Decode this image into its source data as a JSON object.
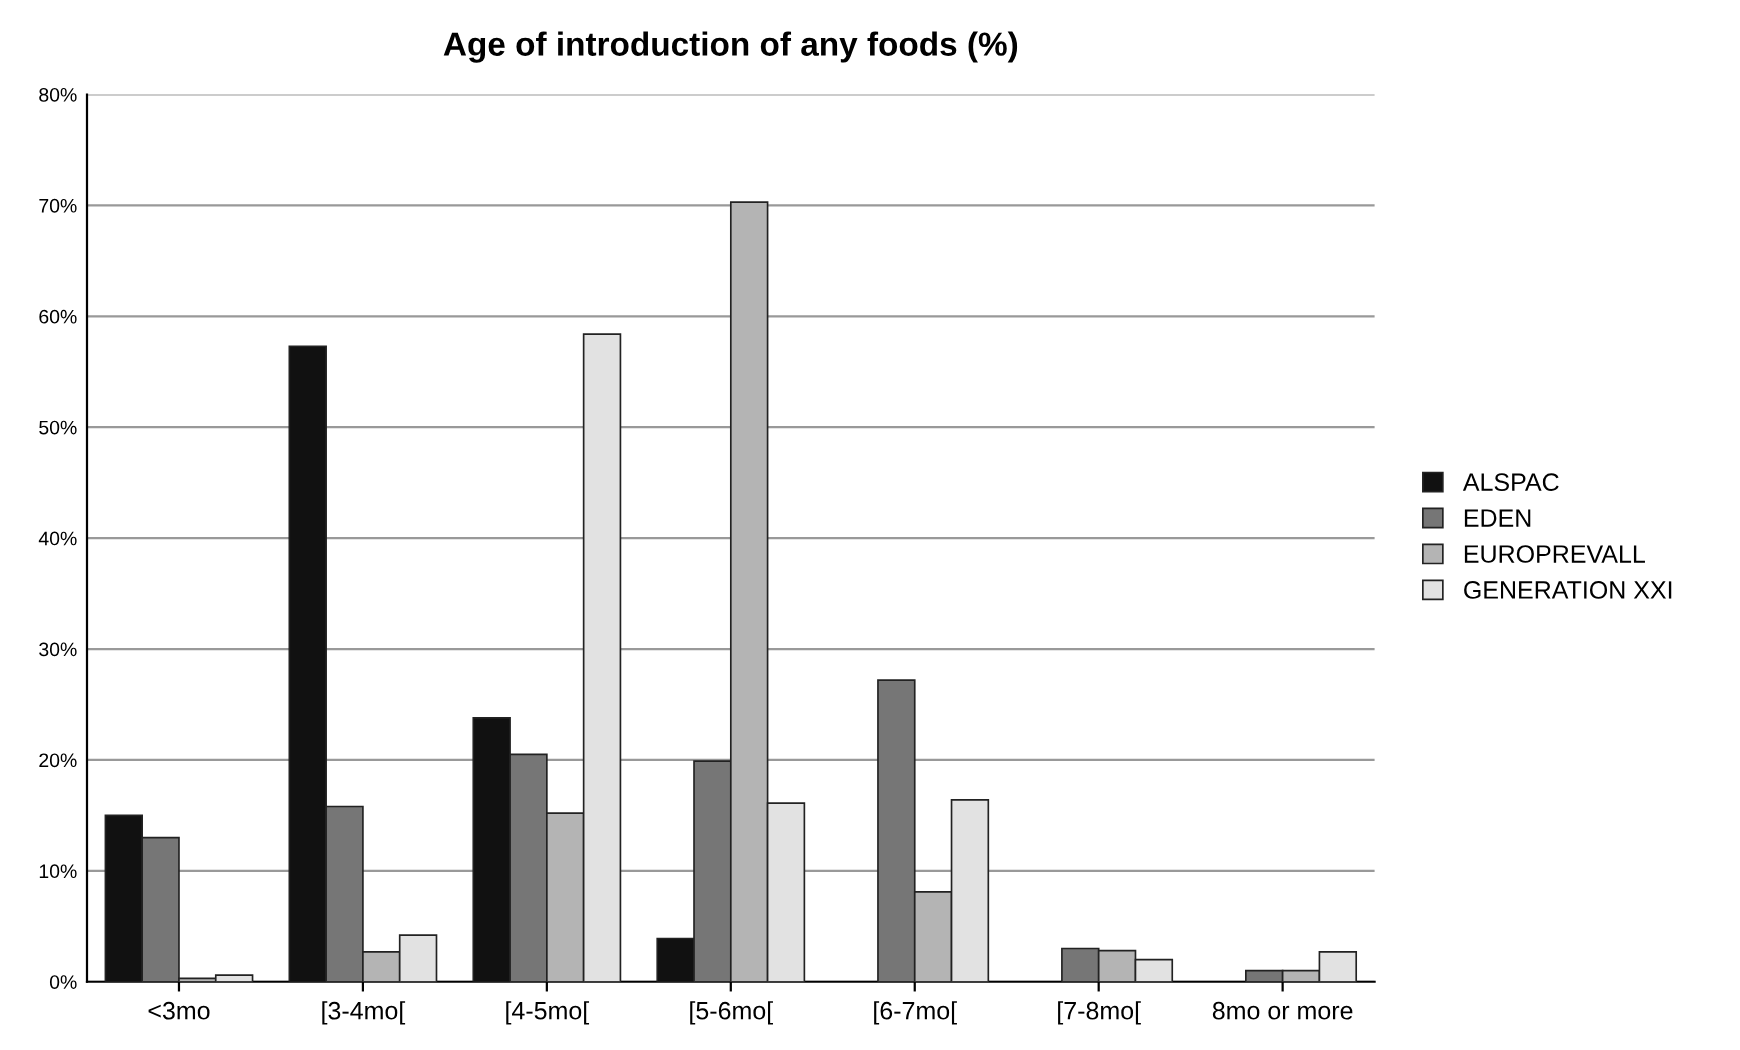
{
  "chart_data": {
    "type": "bar",
    "title": "Age of introduction of any foods (%)",
    "categories": [
      "<3mo",
      "[3-4mo[",
      "[4-5mo[",
      "[5-6mo[",
      "[6-7mo[",
      "[7-8mo[",
      "8mo or more"
    ],
    "series": [
      {
        "name": "ALSPAC",
        "color": "#111111",
        "values": [
          15.0,
          57.3,
          23.8,
          3.9,
          null,
          null,
          null
        ]
      },
      {
        "name": "EDEN",
        "color": "#767676",
        "values": [
          13.0,
          15.8,
          20.5,
          19.9,
          27.2,
          3.0,
          1.0
        ]
      },
      {
        "name": "EUROPREVALL",
        "color": "#b4b4b4",
        "values": [
          0.3,
          2.7,
          15.2,
          70.3,
          8.1,
          2.8,
          1.0
        ]
      },
      {
        "name": "GENERATION XXI",
        "color": "#e2e2e2",
        "values": [
          0.6,
          4.2,
          58.4,
          16.1,
          16.4,
          2.0,
          2.7
        ]
      }
    ],
    "ylim": [
      0,
      80
    ],
    "yticks": [
      {
        "value": 0,
        "label": "0%"
      },
      {
        "value": 10,
        "label": "10%"
      },
      {
        "value": 20,
        "label": "20%"
      },
      {
        "value": 30,
        "label": "30%"
      },
      {
        "value": 40,
        "label": "40%"
      },
      {
        "value": 50,
        "label": "50%"
      },
      {
        "value": 60,
        "label": "60%"
      },
      {
        "value": 70,
        "label": "70%"
      },
      {
        "value": 80,
        "label": "80%"
      }
    ],
    "grid": "y",
    "legend": "right"
  }
}
